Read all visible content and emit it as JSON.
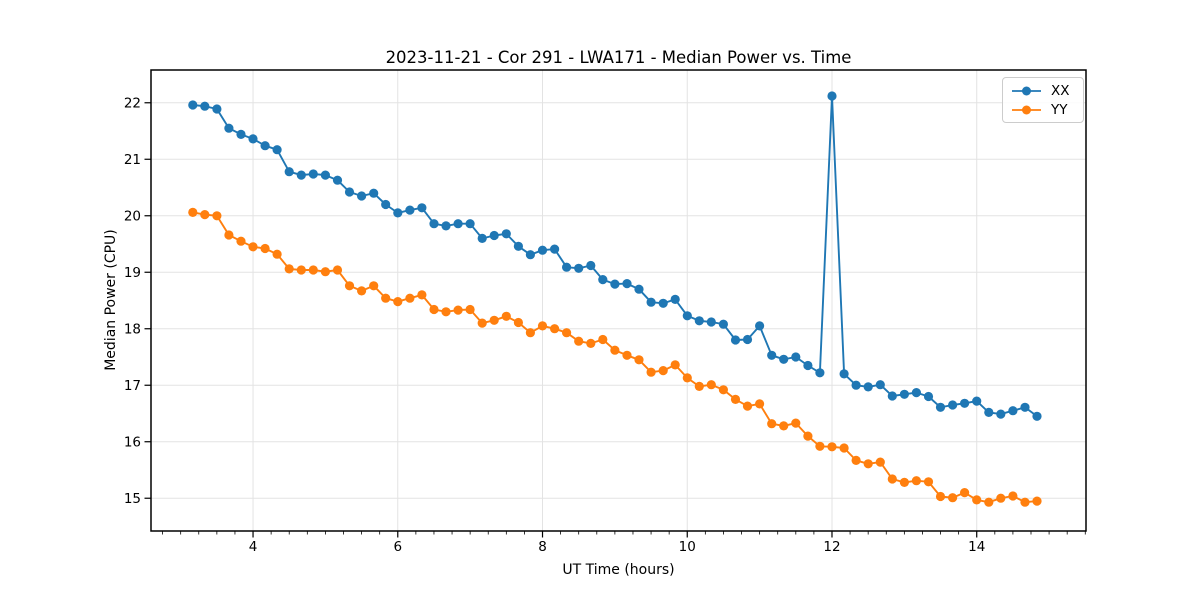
{
  "chart_data": {
    "type": "line",
    "title": "2023-11-21 - Cor 291 - LWA171 - Median Power vs. Time",
    "xlabel": "UT Time (hours)",
    "ylabel": "Median Power (CPU)",
    "xlim": [
      2.59,
      15.51
    ],
    "ylim": [
      14.42,
      22.58
    ],
    "xticks": [
      4,
      6,
      8,
      10,
      12,
      14
    ],
    "yticks": [
      15,
      16,
      17,
      18,
      19,
      20,
      21,
      22
    ],
    "minor_xtick_step": 0.25,
    "grid": true,
    "grid_color": "#e3e3e3",
    "legend_position": "upper right",
    "x": [
      3.167,
      3.333,
      3.5,
      3.667,
      3.833,
      4.0,
      4.167,
      4.333,
      4.5,
      4.667,
      4.833,
      5.0,
      5.167,
      5.333,
      5.5,
      5.667,
      5.833,
      6.0,
      6.167,
      6.333,
      6.5,
      6.667,
      6.833,
      7.0,
      7.167,
      7.333,
      7.5,
      7.667,
      7.833,
      8.0,
      8.167,
      8.333,
      8.5,
      8.667,
      8.833,
      9.0,
      9.167,
      9.333,
      9.5,
      9.667,
      9.833,
      10.0,
      10.167,
      10.333,
      10.5,
      10.667,
      10.833,
      11.0,
      11.167,
      11.333,
      11.5,
      11.667,
      11.833,
      12.0,
      12.167,
      12.333,
      12.5,
      12.667,
      12.833,
      13.0,
      13.167,
      13.333,
      13.5,
      13.667,
      13.833,
      14.0,
      14.167,
      14.333,
      14.5,
      14.667,
      14.833
    ],
    "series": [
      {
        "name": "XX",
        "color": "#1f77b4",
        "values": [
          21.96,
          21.94,
          21.89,
          21.55,
          21.44,
          21.36,
          21.24,
          21.17,
          20.78,
          20.72,
          20.74,
          20.72,
          20.63,
          20.42,
          20.35,
          20.4,
          20.2,
          20.05,
          20.1,
          20.14,
          19.86,
          19.82,
          19.86,
          19.86,
          19.6,
          19.65,
          19.68,
          19.46,
          19.31,
          19.39,
          19.41,
          19.09,
          19.07,
          19.12,
          18.87,
          18.79,
          18.8,
          18.7,
          18.47,
          18.45,
          18.52,
          18.23,
          18.14,
          18.12,
          18.08,
          17.8,
          17.81,
          18.05,
          17.53,
          17.46,
          17.5,
          17.35,
          17.22,
          22.12,
          17.2,
          17.0,
          16.97,
          17.01,
          16.81,
          16.84,
          16.87,
          16.8,
          16.61,
          16.65,
          16.68,
          16.72,
          16.52,
          16.49,
          16.55,
          16.61,
          16.45
        ]
      },
      {
        "name": "YY",
        "color": "#ff7f0e",
        "values": [
          20.06,
          20.02,
          20.0,
          19.66,
          19.55,
          19.45,
          19.42,
          19.32,
          19.06,
          19.04,
          19.04,
          19.01,
          19.04,
          18.76,
          18.67,
          18.76,
          18.54,
          18.48,
          18.54,
          18.6,
          18.34,
          18.3,
          18.33,
          18.34,
          18.1,
          18.15,
          18.22,
          18.11,
          17.93,
          18.05,
          18.0,
          17.93,
          17.78,
          17.74,
          17.81,
          17.62,
          17.53,
          17.45,
          17.23,
          17.26,
          17.36,
          17.13,
          16.98,
          17.01,
          16.92,
          16.75,
          16.63,
          16.67,
          16.32,
          16.28,
          16.33,
          16.1,
          15.92,
          15.91,
          15.89,
          15.67,
          15.61,
          15.64,
          15.34,
          15.28,
          15.31,
          15.29,
          15.03,
          15.01,
          15.1,
          14.97,
          14.93,
          15.0,
          15.04,
          14.93,
          14.95
        ]
      }
    ]
  }
}
